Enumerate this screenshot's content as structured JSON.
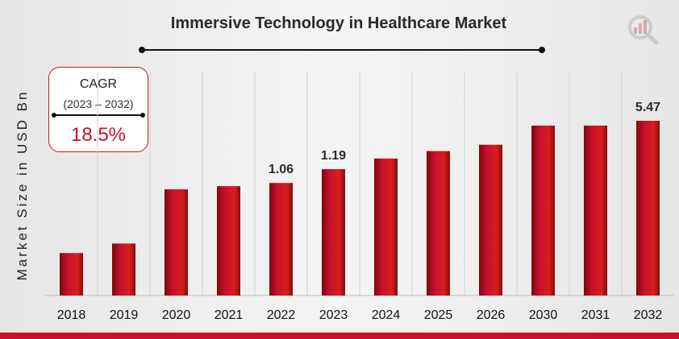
{
  "chart_data": {
    "type": "bar",
    "title": "Immersive Technology in Healthcare Market",
    "ylabel": "Market Size in USD Bn",
    "xlabel": "",
    "categories": [
      "2018",
      "2019",
      "2020",
      "2021",
      "2022",
      "2023",
      "2024",
      "2025",
      "2026",
      "2030",
      "2031",
      "2032"
    ],
    "values": [
      0.4,
      0.49,
      1.0,
      1.03,
      1.06,
      1.19,
      1.29,
      1.36,
      1.42,
      1.6,
      1.6,
      5.47
    ],
    "data_labels": {
      "2022": "1.06",
      "2023": "1.19",
      "2032": "5.47"
    },
    "grid": true,
    "bar_color": "#c8102e"
  },
  "cagr": {
    "title": "CAGR",
    "period": "(2023 – 2032)",
    "value": "18.5%"
  },
  "colors": {
    "accent": "#c8102e",
    "border": "#c11a1a"
  },
  "icons": {
    "logo": "chart-magnifier-logo-icon"
  }
}
